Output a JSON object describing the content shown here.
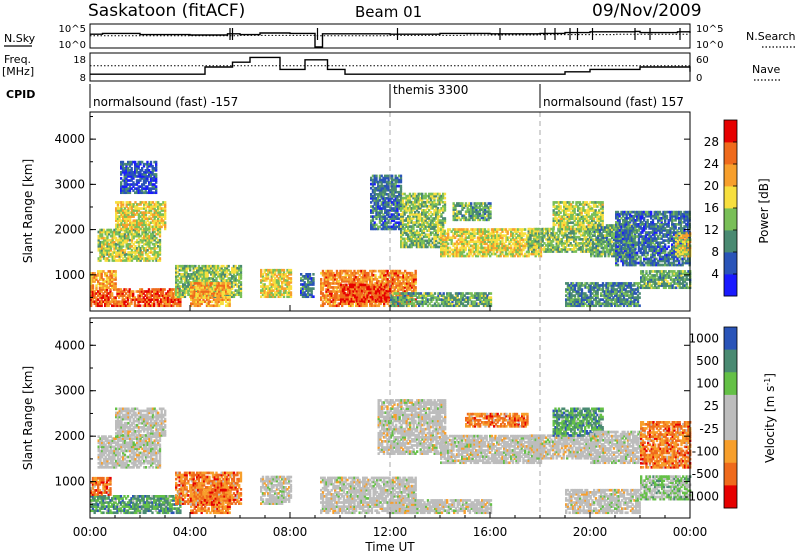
{
  "header": {
    "title": "Saskatoon (fitACF)",
    "beam": "Beam 01",
    "date": "09/Nov/2009"
  },
  "top_panels": {
    "nsky_label": "N.Sky",
    "nsearch_label": "N.Search",
    "freq_label_1": "Freq.",
    "freq_label_2": "[MHz]",
    "nave_label": "Nave",
    "left_ticks_row1": [
      "10^5",
      "10^0"
    ],
    "right_ticks_row1": [
      "10^5",
      "10^0"
    ],
    "left_ticks_row2": [
      "18",
      "8"
    ],
    "right_ticks_row2": [
      "60",
      "0"
    ],
    "cpid_label": "CPID",
    "cpid_segments": [
      {
        "label": "normalsound (fast) -157",
        "start_h": 0,
        "end_h": 12
      },
      {
        "label": "themis 3300",
        "start_h": 12,
        "end_h": 18
      },
      {
        "label": "normalsound (fast) 157",
        "start_h": 18,
        "end_h": 24
      }
    ]
  },
  "time_axis": {
    "label": "Time UT",
    "ticks": [
      "00:00",
      "04:00",
      "08:00",
      "12:00",
      "16:00",
      "20:00",
      "00:00"
    ]
  },
  "chart_data": [
    {
      "type": "heatmap",
      "name": "power",
      "ylabel": "Slant Range [km]",
      "yticks": [
        1000,
        2000,
        3000,
        4000
      ],
      "ylim": [
        200,
        4600
      ],
      "xlim_hours": [
        0,
        24
      ],
      "colorbar_label": "Power [dB]",
      "colorbar_ticks": [
        "4",
        "8",
        "12",
        "16",
        "20",
        "24",
        "28"
      ],
      "colorbar_colors": [
        "#1a1aff",
        "#2a54b8",
        "#4a8a72",
        "#79bf58",
        "#f7df3f",
        "#f79f2c",
        "#ef6a1c",
        "#e60000"
      ],
      "regions": [
        {
          "t0": 0.0,
          "t1": 3.6,
          "r0": 300,
          "r1": 700,
          "v": 26
        },
        {
          "t0": 0.0,
          "t1": 1.0,
          "r0": 700,
          "r1": 1100,
          "v": 22
        },
        {
          "t0": 0.3,
          "t1": 2.8,
          "r0": 1300,
          "r1": 2000,
          "v": 16
        },
        {
          "t0": 1.0,
          "t1": 3.0,
          "r0": 2000,
          "r1": 2600,
          "v": 18
        },
        {
          "t0": 1.2,
          "t1": 2.6,
          "r0": 2800,
          "r1": 3500,
          "v": 6
        },
        {
          "t0": 3.4,
          "t1": 6.0,
          "r0": 500,
          "r1": 1200,
          "v": 14
        },
        {
          "t0": 4.0,
          "t1": 5.6,
          "r0": 300,
          "r1": 800,
          "v": 22
        },
        {
          "t0": 6.8,
          "t1": 8.0,
          "r0": 500,
          "r1": 1100,
          "v": 18
        },
        {
          "t0": 8.4,
          "t1": 8.9,
          "r0": 500,
          "r1": 1000,
          "v": 8
        },
        {
          "t0": 9.2,
          "t1": 13.0,
          "r0": 300,
          "r1": 1100,
          "v": 24
        },
        {
          "t0": 10.0,
          "t1": 12.0,
          "r0": 400,
          "r1": 800,
          "v": 28
        },
        {
          "t0": 12.0,
          "t1": 16.0,
          "r0": 300,
          "r1": 600,
          "v": 12
        },
        {
          "t0": 11.2,
          "t1": 12.4,
          "r0": 2000,
          "r1": 3200,
          "v": 8
        },
        {
          "t0": 12.4,
          "t1": 14.2,
          "r0": 1600,
          "r1": 2800,
          "v": 14
        },
        {
          "t0": 14.0,
          "t1": 18.0,
          "r0": 1400,
          "r1": 2000,
          "v": 18
        },
        {
          "t0": 14.5,
          "t1": 16.0,
          "r0": 2200,
          "r1": 2600,
          "v": 12
        },
        {
          "t0": 17.5,
          "t1": 20.0,
          "r0": 1500,
          "r1": 2000,
          "v": 14
        },
        {
          "t0": 18.5,
          "t1": 20.5,
          "r0": 2000,
          "r1": 2600,
          "v": 16
        },
        {
          "t0": 20.0,
          "t1": 21.8,
          "r0": 1400,
          "r1": 2100,
          "v": 12
        },
        {
          "t0": 21.0,
          "t1": 24.0,
          "r0": 1200,
          "r1": 2400,
          "v": 8
        },
        {
          "t0": 19.0,
          "t1": 22.0,
          "r0": 300,
          "r1": 800,
          "v": 10
        },
        {
          "t0": 22.0,
          "t1": 24.0,
          "r0": 700,
          "r1": 1100,
          "v": 12
        },
        {
          "t0": 23.4,
          "t1": 24.0,
          "r0": 1400,
          "r1": 1900,
          "v": 18
        }
      ]
    },
    {
      "type": "heatmap",
      "name": "velocity",
      "ylabel": "Slant Range [km]",
      "yticks": [
        1000,
        2000,
        3000,
        4000
      ],
      "ylim": [
        200,
        4600
      ],
      "xlim_hours": [
        0,
        24
      ],
      "colorbar_label": "Velocity [m s^-1]",
      "colorbar_ticks": [
        "1000",
        "500",
        "100",
        "25",
        "-25",
        "-100",
        "-500",
        "-1000"
      ],
      "colorbar_colors": [
        "#2a54b8",
        "#4a8a72",
        "#64c046",
        "#bdbdbd",
        "#bdbdbd",
        "#f79f2c",
        "#ef6a1c",
        "#e60000"
      ],
      "regions": [
        {
          "t0": 0.0,
          "t1": 3.6,
          "r0": 300,
          "r1": 700,
          "v": 120
        },
        {
          "t0": 0.0,
          "t1": 0.8,
          "r0": 700,
          "r1": 1100,
          "v": -150
        },
        {
          "t0": 0.3,
          "t1": 2.8,
          "r0": 1300,
          "r1": 2000,
          "v": 0
        },
        {
          "t0": 1.0,
          "t1": 3.0,
          "r0": 2000,
          "r1": 2600,
          "v": 0
        },
        {
          "t0": 3.4,
          "t1": 6.0,
          "r0": 500,
          "r1": 1200,
          "v": -200
        },
        {
          "t0": 4.0,
          "t1": 5.6,
          "r0": 300,
          "r1": 800,
          "v": -150
        },
        {
          "t0": 6.8,
          "t1": 8.0,
          "r0": 500,
          "r1": 1100,
          "v": 0
        },
        {
          "t0": 9.2,
          "t1": 13.0,
          "r0": 300,
          "r1": 1100,
          "v": 0
        },
        {
          "t0": 12.0,
          "t1": 16.0,
          "r0": 300,
          "r1": 600,
          "v": 0
        },
        {
          "t0": 11.5,
          "t1": 14.2,
          "r0": 1600,
          "r1": 2800,
          "v": 0
        },
        {
          "t0": 14.0,
          "t1": 18.0,
          "r0": 1400,
          "r1": 2000,
          "v": 0
        },
        {
          "t0": 15.0,
          "t1": 17.5,
          "r0": 2200,
          "r1": 2500,
          "v": -150
        },
        {
          "t0": 17.5,
          "t1": 20.0,
          "r0": 1500,
          "r1": 2000,
          "v": 0
        },
        {
          "t0": 18.5,
          "t1": 20.5,
          "r0": 2000,
          "r1": 2600,
          "v": 110
        },
        {
          "t0": 20.0,
          "t1": 22.0,
          "r0": 1400,
          "r1": 2100,
          "v": 0
        },
        {
          "t0": 22.0,
          "t1": 24.0,
          "r0": 1300,
          "r1": 2300,
          "v": -200
        },
        {
          "t0": 19.0,
          "t1": 22.0,
          "r0": 300,
          "r1": 800,
          "v": 0
        },
        {
          "t0": 22.0,
          "t1": 24.0,
          "r0": 600,
          "r1": 1100,
          "v": 50
        }
      ]
    },
    {
      "type": "line",
      "name": "nsky_nsearch",
      "xlim_hours": [
        0,
        24
      ],
      "series": [
        {
          "name": "N.Sky",
          "x": [
            0,
            0.5,
            2,
            4,
            5.5,
            6,
            6.8,
            8,
            9,
            9.3,
            12,
            14,
            16,
            18,
            19,
            20,
            21.8,
            22,
            23.5,
            24
          ],
          "y": [
            3.2,
            3.4,
            3.1,
            3.0,
            3.3,
            3.1,
            3.5,
            3.4,
            0.0,
            3.3,
            3.2,
            3.4,
            3.3,
            3.4,
            3.6,
            3.8,
            3.9,
            3.6,
            3.8,
            3.5
          ]
        },
        {
          "name": "N.Search",
          "x": [
            0,
            3,
            6,
            9,
            12,
            15,
            18,
            21,
            24
          ],
          "y": [
            2.8,
            2.8,
            2.9,
            2.8,
            2.9,
            3.0,
            3.1,
            3.2,
            3.0
          ]
        }
      ]
    },
    {
      "type": "line",
      "name": "freq_nave",
      "xlim_hours": [
        0,
        24
      ],
      "series": [
        {
          "name": "Freq. [MHz]",
          "x": [
            0,
            4.5,
            4.6,
            5.6,
            5.7,
            6.3,
            6.4,
            7.5,
            7.6,
            8.5,
            8.6,
            9.4,
            9.5,
            10.1,
            10.2,
            16,
            18.5,
            19,
            20,
            21.5,
            22,
            24
          ],
          "y": [
            10,
            10,
            13,
            13,
            15,
            15,
            17,
            17,
            12,
            12,
            16,
            16,
            12,
            12,
            10,
            10,
            10,
            11,
            12,
            12,
            13,
            11
          ]
        },
        {
          "name": "Nave",
          "x": [
            0,
            6,
            12,
            18,
            24
          ],
          "y": [
            33,
            33,
            33,
            33,
            33
          ]
        }
      ]
    }
  ]
}
